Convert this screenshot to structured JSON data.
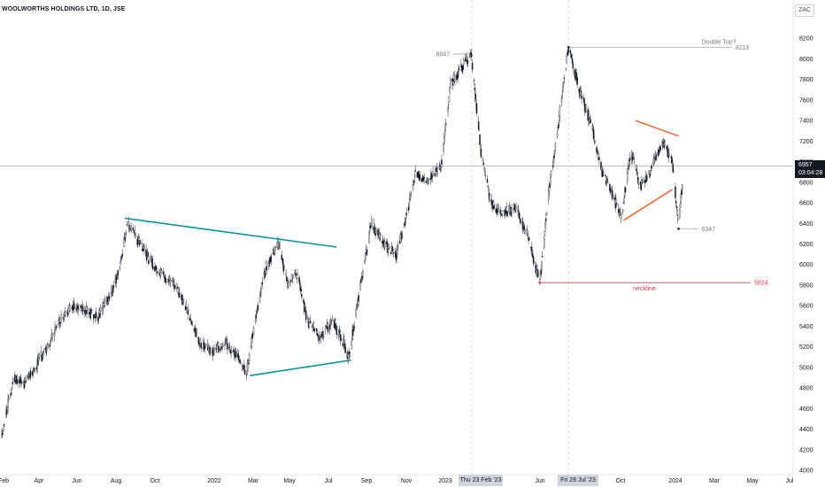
{
  "header": {
    "title": "WOOLWORTHS HOLDINGS LTD, 1D, JSE",
    "currency": "ZAC"
  },
  "price_marker": {
    "price": "6957",
    "countdown": "03:04:28"
  },
  "crosshair_dates": [
    "Thu 23 Feb '23",
    "Fri 28 Jul '23"
  ],
  "chart_data": {
    "type": "candlestick",
    "title": "WOOLWORTHS HOLDINGS LTD, 1D, JSE",
    "ylim": [
      4000,
      8400
    ],
    "y_ticks": [
      4000,
      4200,
      4400,
      4600,
      4800,
      5000,
      5200,
      5400,
      5600,
      5800,
      6000,
      6200,
      6400,
      6600,
      6800,
      7000,
      7200,
      7400,
      7600,
      7800,
      8000,
      8200
    ],
    "x_ticks": [
      "Feb",
      "Apr",
      "Jun",
      "Aug",
      "Oct",
      "2022",
      "Mar",
      "May",
      "Jul",
      "Sep",
      "Nov",
      "2023",
      "Jun",
      "Oct",
      "2024",
      "Mar",
      "May",
      "Jul"
    ],
    "x_range": [
      "2021-02-01",
      "2024-07-20"
    ],
    "price_points": [
      [
        "2021-02-01",
        4350
      ],
      [
        "2021-02-20",
        4900
      ],
      [
        "2021-03-10",
        4850
      ],
      [
        "2021-03-31",
        5050
      ],
      [
        "2021-04-15",
        5200
      ],
      [
        "2021-05-05",
        5450
      ],
      [
        "2021-05-25",
        5600
      ],
      [
        "2021-06-15",
        5550
      ],
      [
        "2021-07-05",
        5500
      ],
      [
        "2021-07-25",
        5700
      ],
      [
        "2021-08-10",
        6000
      ],
      [
        "2021-08-20",
        6400
      ],
      [
        "2021-09-05",
        6250
      ],
      [
        "2021-09-25",
        6050
      ],
      [
        "2021-10-15",
        5900
      ],
      [
        "2021-11-05",
        5800
      ],
      [
        "2021-11-25",
        5550
      ],
      [
        "2021-12-15",
        5250
      ],
      [
        "2022-01-05",
        5150
      ],
      [
        "2022-01-25",
        5250
      ],
      [
        "2022-02-15",
        5100
      ],
      [
        "2022-02-28",
        4950
      ],
      [
        "2022-03-15",
        5500
      ],
      [
        "2022-04-01",
        6000
      ],
      [
        "2022-04-20",
        6200
      ],
      [
        "2022-05-05",
        5800
      ],
      [
        "2022-05-20",
        5900
      ],
      [
        "2022-06-05",
        5450
      ],
      [
        "2022-06-25",
        5300
      ],
      [
        "2022-07-15",
        5450
      ],
      [
        "2022-08-01",
        5250
      ],
      [
        "2022-08-10",
        5100
      ],
      [
        "2022-08-25",
        5650
      ],
      [
        "2022-09-15",
        6400
      ],
      [
        "2022-10-05",
        6200
      ],
      [
        "2022-10-25",
        6100
      ],
      [
        "2022-11-10",
        6450
      ],
      [
        "2022-11-25",
        6900
      ],
      [
        "2022-12-15",
        6800
      ],
      [
        "2023-01-05",
        6950
      ],
      [
        "2023-01-20",
        7750
      ],
      [
        "2023-02-05",
        7900
      ],
      [
        "2023-02-22",
        8047
      ],
      [
        "2023-03-10",
        7100
      ],
      [
        "2023-03-25",
        6600
      ],
      [
        "2023-04-15",
        6500
      ],
      [
        "2023-05-05",
        6550
      ],
      [
        "2023-05-25",
        6250
      ],
      [
        "2023-06-12",
        5824
      ],
      [
        "2023-06-25",
        6650
      ],
      [
        "2023-07-10",
        7300
      ],
      [
        "2023-07-28",
        8113
      ],
      [
        "2023-08-15",
        7700
      ],
      [
        "2023-09-05",
        7300
      ],
      [
        "2023-09-20",
        6900
      ],
      [
        "2023-10-05",
        6700
      ],
      [
        "2023-10-20",
        6450
      ],
      [
        "2023-11-05",
        7100
      ],
      [
        "2023-11-20",
        6750
      ],
      [
        "2023-12-05",
        6900
      ],
      [
        "2023-12-25",
        7200
      ],
      [
        "2024-01-10",
        7000
      ],
      [
        "2024-01-20",
        6347
      ],
      [
        "2024-01-28",
        6957
      ]
    ],
    "annotations": [
      {
        "label": "8047",
        "date": "2023-02-22",
        "price": 8047
      },
      {
        "label": "Double Top?",
        "date": "2023-07-28",
        "price": 8113,
        "value_label": "8113"
      },
      {
        "label": "6347",
        "date": "2024-01-20",
        "price": 6347
      },
      {
        "label": "neckline",
        "date": "2023-06-12",
        "price": 5824,
        "value_label": "5824"
      }
    ],
    "trendlines": [
      {
        "color": "#089799",
        "from": [
          "2021-08-17",
          6450
        ],
        "to": [
          "2022-07-22",
          6170
        ]
      },
      {
        "color": "#089799",
        "from": [
          "2022-03-05",
          4920
        ],
        "to": [
          "2022-08-14",
          5070
        ]
      },
      {
        "color": "#f26b3a",
        "from": [
          "2023-11-12",
          7400
        ],
        "to": [
          "2024-01-20",
          7250
        ]
      },
      {
        "color": "#f26b3a",
        "from": [
          "2023-10-24",
          6430
        ],
        "to": [
          "2024-01-10",
          6730
        ]
      }
    ],
    "horizontal_lines": [
      {
        "price": 6957,
        "color": "#b2b5be"
      }
    ]
  }
}
